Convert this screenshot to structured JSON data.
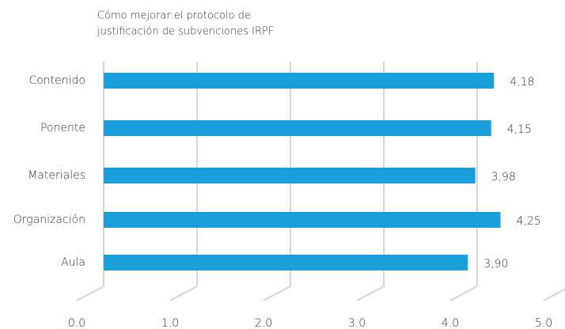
{
  "chart_data": {
    "type": "bar",
    "orientation": "horizontal",
    "title": [
      "Cómo mejorar el protocolo de",
      "justificación de subvenciones IRPF"
    ],
    "categories": [
      "Contenido",
      "Ponente",
      "Materiales",
      "Organización",
      "Aula"
    ],
    "values": [
      4.18,
      4.15,
      3.98,
      4.25,
      3.9
    ],
    "value_labels": [
      "4,18",
      "4,15",
      "3,98",
      "4,25",
      "3,90"
    ],
    "color": "#1a9fdb",
    "xlim": [
      0,
      5
    ],
    "xticks": [
      {
        "value": 0,
        "label": "0.0"
      },
      {
        "value": 1,
        "label": "1.0"
      },
      {
        "value": 2,
        "label": "2.0"
      },
      {
        "value": 3,
        "label": "3.0"
      },
      {
        "value": 4,
        "label": "4.0"
      },
      {
        "value": 5,
        "label": "5.0"
      }
    ],
    "grid": true
  }
}
